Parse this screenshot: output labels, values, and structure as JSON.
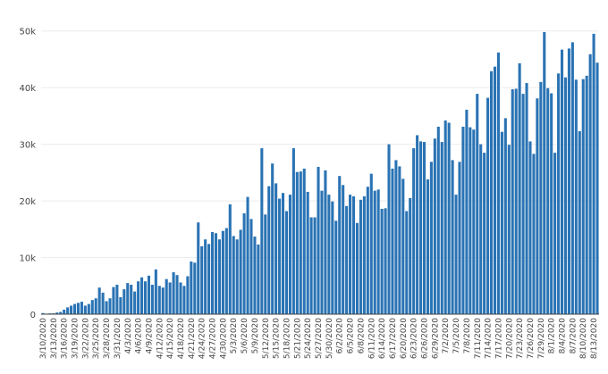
{
  "chart_data": {
    "type": "bar",
    "title": "",
    "xlabel": "",
    "ylabel": "",
    "ylim": [
      0,
      52000
    ],
    "yticks": [
      0,
      10000,
      20000,
      30000,
      40000,
      50000
    ],
    "ytick_labels": [
      "0",
      "10k",
      "20k",
      "30k",
      "40k",
      "50k"
    ],
    "start_date": "3/10/2020",
    "grid": "horizontal",
    "legend": "none",
    "bar_color": "#2a73b4",
    "x_labels": [
      "3/10/2020",
      "3/13/2020",
      "3/16/2020",
      "3/19/2020",
      "3/22/2020",
      "3/25/2020",
      "3/28/2020",
      "3/31/2020",
      "4/3/2020",
      "4/6/2020",
      "4/9/2020",
      "4/12/2020",
      "4/15/2020",
      "4/18/2020",
      "4/21/2020",
      "4/24/2020",
      "4/27/2020",
      "4/30/2020",
      "5/3/2020",
      "5/6/2020",
      "5/9/2020",
      "5/12/2020",
      "5/15/2020",
      "5/18/2020",
      "5/21/2020",
      "5/24/2020",
      "5/27/2020",
      "5/30/2020",
      "6/2/2020",
      "6/5/2020",
      "6/8/2020",
      "6/11/2020",
      "6/14/2020",
      "6/17/2020",
      "6/20/2020",
      "6/23/2020",
      "6/26/2020",
      "6/29/2020",
      "7/2/2020",
      "7/5/2020",
      "7/8/2020",
      "7/11/2020",
      "7/14/2020",
      "7/17/2020",
      "7/20/2020",
      "7/23/2020",
      "7/26/2020",
      "7/29/2020",
      "8/1/2020",
      "8/4/2020",
      "8/7/2020",
      "8/10/2020",
      "8/13/2020"
    ],
    "values": [
      200,
      100,
      150,
      150,
      300,
      400,
      800,
      1200,
      1500,
      1800,
      2000,
      2200,
      1500,
      1800,
      2500,
      2800,
      4700,
      3800,
      2300,
      2800,
      4800,
      5200,
      3000,
      4400,
      5500,
      5200,
      4000,
      5800,
      6500,
      5800,
      6800,
      5200,
      7900,
      5000,
      4700,
      6200,
      5600,
      7400,
      6900,
      5600,
      5000,
      6700,
      9300,
      9100,
      16200,
      12000,
      13200,
      12400,
      14500,
      14300,
      13200,
      14700,
      15200,
      19400,
      13800,
      13200,
      14900,
      17800,
      20700,
      16800,
      13700,
      12300,
      29300,
      17600,
      22600,
      26600,
      23100,
      20400,
      21400,
      18200,
      21100,
      29300,
      25100,
      25200,
      25700,
      21600,
      17100,
      17100,
      26000,
      21800,
      25400,
      21100,
      19900,
      16500,
      24400,
      22800,
      19100,
      21100,
      20800,
      16100,
      20200,
      20800,
      22500,
      24800,
      21800,
      22000,
      18600,
      18700,
      30000,
      25700,
      27200,
      26100,
      23900,
      18200,
      20500,
      29300,
      31600,
      30500,
      30400,
      23800,
      26900,
      31000,
      33100,
      30400,
      34200,
      33800,
      27200,
      21100,
      26900,
      33100,
      36100,
      33000,
      32600,
      38900,
      30000,
      28500,
      38200,
      42900,
      43700,
      46200,
      32200,
      34600,
      29900,
      39700,
      39800,
      44300,
      38900,
      40800,
      30500,
      28300,
      38100,
      41000,
      49800,
      39900,
      39000,
      28500,
      42500,
      46700,
      41800,
      46900,
      48000,
      41400,
      32300,
      41500,
      42100,
      45900,
      49500,
      44400
    ]
  }
}
